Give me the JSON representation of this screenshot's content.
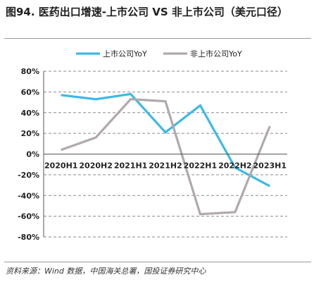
{
  "title": "图94. 医药出口增速-上市公司 VS 非上市公司（美元口径）",
  "source": "资料来源：Wind 数据，中国海关总署，国投证券研究中心",
  "colors": {
    "listed": "#3cb9e6",
    "unlisted": "#b0a9ab",
    "grid": "#8a8a8a",
    "axis": "#555555"
  },
  "chart_data": {
    "type": "line",
    "categories": [
      "2020H1",
      "2020H2",
      "2021H1",
      "2021H2",
      "2022H1",
      "2022H2",
      "2023H1"
    ],
    "series": [
      {
        "name": "上市公司YoY",
        "values": [
          57,
          53,
          58,
          21,
          47,
          -13,
          -31
        ]
      },
      {
        "name": "非上市公司YoY",
        "values": [
          4,
          16,
          53,
          51,
          -58,
          -56,
          27
        ]
      }
    ],
    "ylim": [
      -80,
      80
    ],
    "yticks": [
      80,
      60,
      40,
      20,
      0,
      -20,
      -40,
      -60,
      -80
    ],
    "ytick_labels": [
      "80%",
      "60%",
      "40%",
      "20%",
      "0%",
      "-20%",
      "-40%",
      "-60%",
      "-80%"
    ],
    "grid": true,
    "legend": "top"
  }
}
